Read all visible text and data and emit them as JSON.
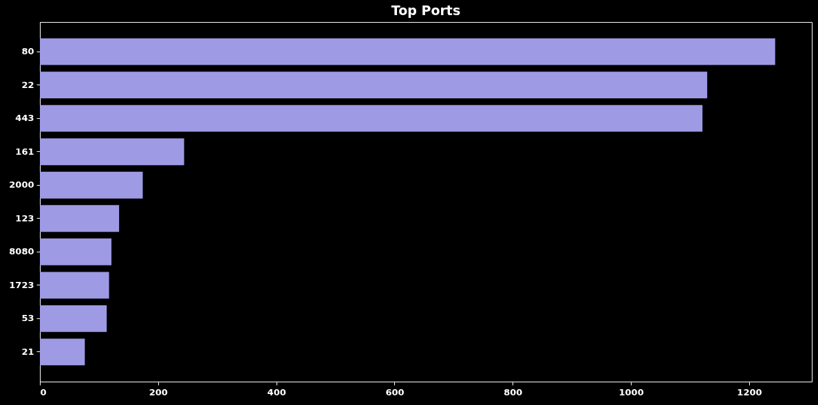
{
  "chart_data": {
    "type": "bar",
    "orientation": "horizontal",
    "title": "Top Ports",
    "categories": [
      "80",
      "22",
      "443",
      "161",
      "2000",
      "123",
      "8080",
      "1723",
      "53",
      "21"
    ],
    "values": [
      1244,
      1129,
      1121,
      244,
      174,
      134,
      121,
      117,
      113,
      76
    ],
    "color": "#9e9ae4",
    "xlim": [
      0,
      1306
    ],
    "xticks": [
      0,
      200,
      400,
      600,
      800,
      1000,
      1200
    ]
  }
}
